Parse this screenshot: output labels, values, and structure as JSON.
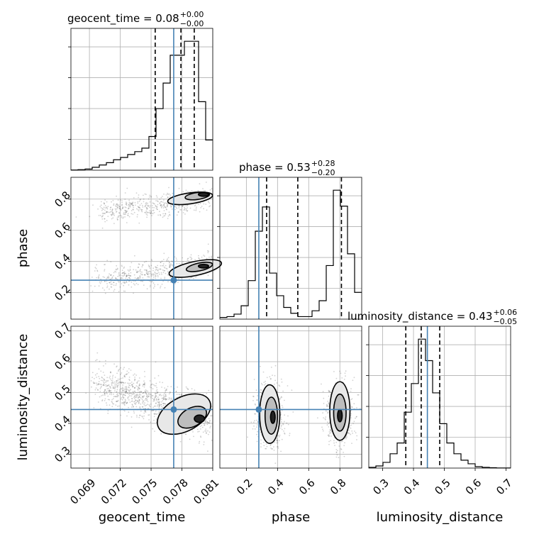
{
  "chart_data": {
    "type": "corner",
    "parameters": [
      "geocent_time",
      "phase",
      "luminosity_distance"
    ],
    "truth": {
      "geocent_time": 0.0772,
      "phase": 0.28,
      "luminosity_distance": 0.445
    },
    "titles": [
      {
        "name": "geocent_time",
        "median": "0.08",
        "plus": "+0.00",
        "minus": "−0.00"
      },
      {
        "name": "phase",
        "median": "0.53",
        "plus": "+0.28",
        "minus": "−0.20"
      },
      {
        "name": "luminosity_distance",
        "median": "0.43",
        "plus": "+0.06",
        "minus": "−0.05"
      }
    ],
    "axes": {
      "geocent_time": {
        "range": [
          0.0672,
          0.081
        ],
        "ticks": [
          "0.069",
          "0.072",
          "0.075",
          "0.078",
          "0.081"
        ],
        "tick_values": [
          0.069,
          0.072,
          0.075,
          0.078,
          0.081
        ]
      },
      "phase": {
        "range": [
          0.03,
          0.94
        ],
        "ticks": [
          "0.2",
          "0.4",
          "0.6",
          "0.8"
        ],
        "tick_values": [
          0.2,
          0.4,
          0.6,
          0.8
        ]
      },
      "luminosity_distance": {
        "range": [
          0.255,
          0.715
        ],
        "ticks": [
          "0.3",
          "0.4",
          "0.5",
          "0.6",
          "0.7"
        ],
        "tick_values": [
          0.3,
          0.4,
          0.5,
          0.6,
          0.7
        ]
      }
    },
    "histograms": {
      "geocent_time": {
        "edges": [
          0.0672,
          0.06789,
          0.06858,
          0.06927,
          0.06996,
          0.07065,
          0.07134,
          0.07203,
          0.07272,
          0.07341,
          0.0741,
          0.07479,
          0.07548,
          0.07617,
          0.07686,
          0.07755,
          0.07824,
          0.07893,
          0.07962,
          0.08031,
          0.081
        ],
        "counts": [
          0.2,
          0.5,
          1,
          2.5,
          4.5,
          6.5,
          9,
          11,
          13.5,
          16,
          19,
          29,
          53,
          75,
          99,
          99,
          111,
          111,
          59,
          26
        ],
        "quantiles": [
          0.0754,
          0.0779,
          0.0792
        ]
      },
      "phase": {
        "edges": [
          0.03,
          0.0755,
          0.121,
          0.1665,
          0.212,
          0.2575,
          0.303,
          0.3485,
          0.394,
          0.4395,
          0.485,
          0.5305,
          0.576,
          0.6215,
          0.667,
          0.7125,
          0.758,
          0.8035,
          0.849,
          0.8945,
          0.94
        ],
        "counts": [
          2,
          3,
          6,
          16,
          46,
          105,
          134,
          55,
          28,
          14,
          7,
          3,
          3,
          10,
          22,
          64,
          154,
          135,
          78,
          32
        ],
        "quantiles": [
          0.33,
          0.53,
          0.81
        ]
      },
      "luminosity_distance": {
        "edges": [
          0.255,
          0.278,
          0.301,
          0.324,
          0.347,
          0.37,
          0.393,
          0.416,
          0.439,
          0.462,
          0.485,
          0.508,
          0.531,
          0.554,
          0.577,
          0.6,
          0.623,
          0.646,
          0.669,
          0.692,
          0.715
        ],
        "counts": [
          1,
          3,
          8,
          20,
          35,
          78,
          118,
          180,
          150,
          105,
          62,
          35,
          20,
          11,
          6,
          2,
          1,
          0.5,
          0.2,
          0.1
        ],
        "quantiles": [
          0.375,
          0.425,
          0.485
        ]
      }
    }
  }
}
